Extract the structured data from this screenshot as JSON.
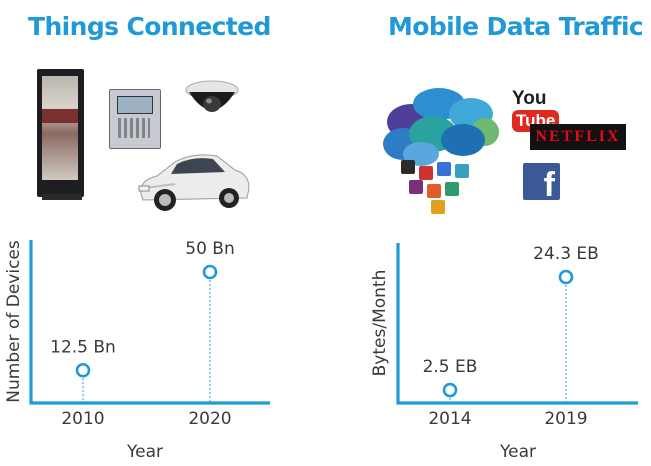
{
  "panels": [
    {
      "title": "Things Connected"
    },
    {
      "title": "Mobile Data Traffic"
    }
  ],
  "logos": {
    "youtube_you": "You",
    "youtube_tube": "Tube",
    "netflix": "NETFLIX",
    "facebook": "f"
  },
  "colors": {
    "accent": "#1f9ad6",
    "text": "#3a3a3a"
  },
  "chart_data": [
    {
      "type": "scatter",
      "title": "Things Connected",
      "xlabel": "Year",
      "ylabel": "Number of Devices",
      "x": [
        "2010",
        "2020"
      ],
      "series": [
        {
          "values": [
            12.5,
            50
          ]
        }
      ],
      "data_labels": [
        "12.5 Bn",
        "50 Bn"
      ],
      "ylim": [
        0,
        60
      ],
      "grid": false,
      "drop_lines": true
    },
    {
      "type": "scatter",
      "title": "Mobile Data Traffic",
      "xlabel": "Year",
      "ylabel": "Bytes/Month",
      "x": [
        "2014",
        "2019"
      ],
      "series": [
        {
          "values": [
            2.5,
            24.3
          ]
        }
      ],
      "data_labels": [
        "2.5 EB",
        "24.3 EB"
      ],
      "ylim": [
        0,
        30
      ],
      "grid": false,
      "drop_lines": true
    }
  ]
}
